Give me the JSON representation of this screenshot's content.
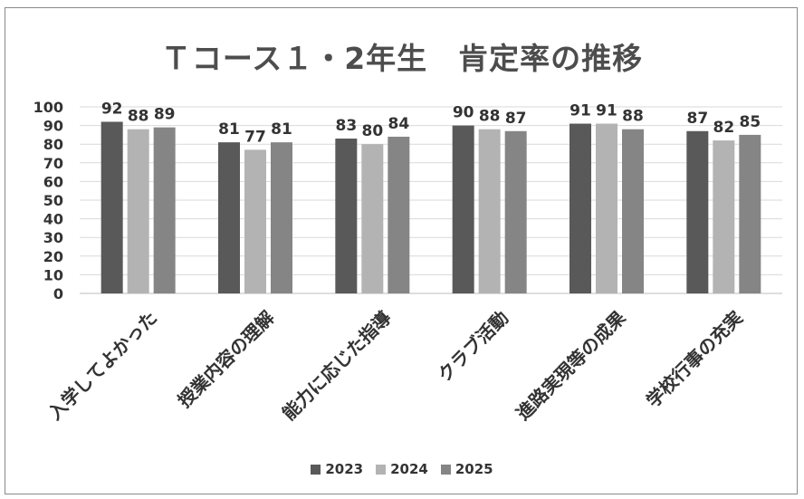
{
  "chart_data": {
    "type": "bar",
    "title": "Ｔコース１・2年生　肯定率の推移",
    "categories": [
      "入学してよかった",
      "授業内容の理解",
      "能力に応じた指導",
      "クラブ活動",
      "進路実現等の成果",
      "学校行事の充実"
    ],
    "series": [
      {
        "name": "2023",
        "values": [
          92,
          81,
          83,
          90,
          91,
          87
        ],
        "color": "#595959"
      },
      {
        "name": "2024",
        "values": [
          88,
          77,
          80,
          88,
          91,
          82
        ],
        "color": "#b3b3b3"
      },
      {
        "name": "2025",
        "values": [
          89,
          81,
          84,
          87,
          88,
          85
        ],
        "color": "#858585"
      }
    ],
    "yticks": [
      0,
      10,
      20,
      30,
      40,
      50,
      60,
      70,
      80,
      90,
      100
    ],
    "ylim": [
      0,
      100
    ],
    "grid": true,
    "legend_position": "bottom",
    "data_labels": true
  }
}
